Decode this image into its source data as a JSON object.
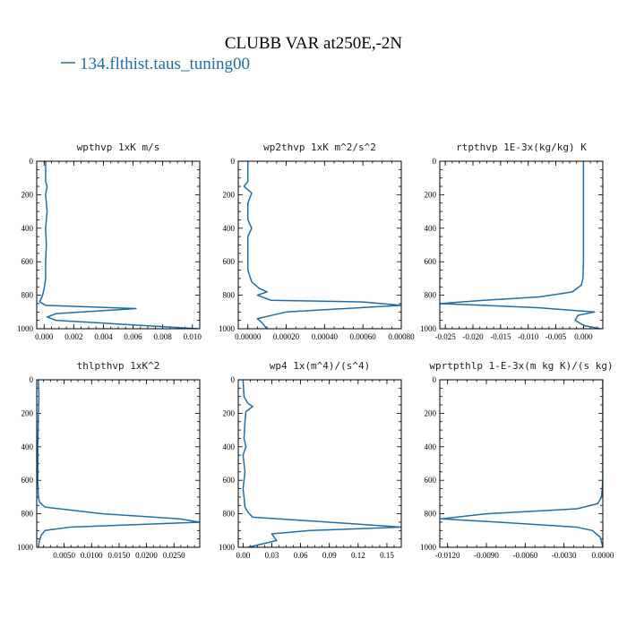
{
  "figure": {
    "title": "CLUBB VAR at250E,-2N",
    "line_color": "#1f6ea8"
  },
  "legend": {
    "label": "134.flthist.taus_tuning00"
  },
  "chart_data": [
    {
      "type": "line",
      "title": "wpthvp   1xK m/s",
      "xlim": [
        -0.0005,
        0.0105
      ],
      "ylim": [
        1000,
        0
      ],
      "y_ticks": [
        0,
        200,
        400,
        600,
        800,
        1000
      ],
      "x_ticks": [
        0.0,
        0.002,
        0.004,
        0.006,
        0.008,
        0.01
      ],
      "x_tick_labels": [
        "0.000",
        "0.002",
        "0.004",
        "0.006",
        "0.008",
        "0.010"
      ],
      "series": [
        {
          "x": [
            0.0001,
            0.0001,
            0.0002,
            0.0001,
            0.0002,
            0.0001,
            0.00015,
            0.0001,
            0.0001,
            0.0,
            -0.0001,
            -0.0003,
            0.0001,
            0.0062,
            0.0008,
            0.0002,
            0.0008,
            0.0104
          ],
          "y": [
            0,
            120,
            150,
            200,
            300,
            400,
            500,
            600,
            700,
            760,
            800,
            840,
            860,
            880,
            910,
            930,
            950,
            1000
          ]
        }
      ]
    },
    {
      "type": "line",
      "title": "wp2thvp   1xK m^2/s^2",
      "xlim": [
        -5e-05,
        0.0008
      ],
      "ylim": [
        1000,
        0
      ],
      "y_ticks": [
        0,
        200,
        400,
        600,
        800,
        1000
      ],
      "x_ticks": [
        0.0,
        0.0002,
        0.0004,
        0.0006,
        0.0008
      ],
      "x_tick_labels": [
        "0.00000",
        "0.00020",
        "0.00040",
        "0.00060",
        "0.00080"
      ],
      "series": [
        {
          "x": [
            0.0,
            0.0,
            -2e-05,
            0.0,
            2e-05,
            0.0,
            0.0,
            2e-05,
            0.0,
            0.0,
            0.0,
            2e-05,
            6e-05,
            0.0001,
            5e-05,
            0.00012,
            0.0006,
            0.0008,
            0.0002,
            5e-05,
            7e-05,
            0.0001
          ],
          "y": [
            0,
            120,
            150,
            170,
            190,
            250,
            350,
            400,
            450,
            550,
            650,
            720,
            760,
            780,
            800,
            830,
            840,
            860,
            900,
            940,
            960,
            1000
          ]
        }
      ]
    },
    {
      "type": "line",
      "title": "rtpthvp   1E-3x(kg/kg) K",
      "xlim": [
        -0.026,
        0.0035
      ],
      "ylim": [
        1000,
        0
      ],
      "y_ticks": [
        0,
        200,
        400,
        600,
        800,
        1000
      ],
      "x_ticks": [
        -0.025,
        -0.02,
        -0.015,
        -0.01,
        -0.005,
        0.0
      ],
      "x_tick_labels": [
        "-0.025",
        "-0.020",
        "-0.015",
        "-0.010",
        "-0.005",
        "0.000"
      ],
      "series": [
        {
          "x": [
            0.0,
            0.0,
            0.0,
            0.0,
            -0.0001,
            -0.0004,
            -0.002,
            -0.008,
            -0.018,
            -0.026,
            -0.018,
            -0.008,
            0.002,
            -0.001,
            -0.0015,
            0.0,
            0.003
          ],
          "y": [
            0,
            200,
            400,
            600,
            700,
            740,
            780,
            810,
            830,
            850,
            860,
            875,
            900,
            920,
            950,
            980,
            1000
          ]
        }
      ]
    },
    {
      "type": "line",
      "title": "thlpthvp   1xK^2",
      "xlim": [
        0.0,
        0.0297
      ],
      "ylim": [
        1000,
        0
      ],
      "y_ticks": [
        0,
        200,
        400,
        600,
        800,
        1000
      ],
      "x_ticks": [
        0.005,
        0.01,
        0.015,
        0.02,
        0.025
      ],
      "x_tick_labels": [
        "0.0050",
        "0.0100",
        "0.0150",
        "0.0200",
        "0.0250"
      ],
      "series": [
        {
          "x": [
            0.0003,
            0.0004,
            0.0003,
            0.0002,
            0.0002,
            0.0003,
            0.0005,
            0.0015,
            0.012,
            0.026,
            0.0297,
            0.006,
            0.0015,
            0.0008,
            0.0005,
            0.0003
          ],
          "y": [
            0,
            100,
            200,
            400,
            600,
            700,
            730,
            760,
            800,
            830,
            850,
            880,
            900,
            930,
            960,
            1000
          ]
        }
      ]
    },
    {
      "type": "line",
      "title": "wp4   1x(m^4)/(s^4)",
      "xlim": [
        -0.005,
        0.165
      ],
      "ylim": [
        1000,
        0
      ],
      "y_ticks": [
        0,
        200,
        400,
        600,
        800,
        1000
      ],
      "x_ticks": [
        0.0,
        0.03,
        0.06,
        0.09,
        0.12,
        0.15
      ],
      "x_tick_labels": [
        "0.00",
        "0.03",
        "0.06",
        "0.09",
        "0.12",
        "0.15"
      ],
      "series": [
        {
          "x": [
            0.0,
            0.001,
            0.005,
            0.01,
            0.003,
            0.002,
            0.001,
            0.003,
            0.0,
            0.002,
            0.0,
            0.001,
            0.002,
            0.005,
            0.01,
            0.09,
            0.165,
            0.07,
            0.03,
            0.035,
            0.02,
            0.005
          ],
          "y": [
            0,
            100,
            140,
            160,
            190,
            250,
            350,
            400,
            450,
            550,
            650,
            700,
            760,
            790,
            820,
            850,
            880,
            900,
            920,
            960,
            980,
            1000
          ]
        }
      ]
    },
    {
      "type": "line",
      "title": "wprtpthlp   1-E-3x(m kg K)/(s kg)",
      "xlim": [
        -0.0126,
        0.0
      ],
      "ylim": [
        1000,
        0
      ],
      "y_ticks": [
        0,
        200,
        400,
        600,
        800,
        1000
      ],
      "x_ticks": [
        -0.012,
        -0.009,
        -0.006,
        -0.003,
        0.0
      ],
      "x_tick_labels": [
        "-0.0120",
        "-0.0090",
        "-0.0060",
        "-0.0030",
        "0.0000"
      ],
      "series": [
        {
          "x": [
            0.0,
            0.0,
            0.0,
            -0.0001,
            -0.0004,
            -0.002,
            -0.009,
            -0.0125,
            -0.008,
            -0.002,
            -0.0008,
            -0.0002,
            0.0
          ],
          "y": [
            0,
            300,
            600,
            700,
            740,
            770,
            800,
            830,
            850,
            880,
            900,
            940,
            1000
          ]
        }
      ]
    }
  ]
}
